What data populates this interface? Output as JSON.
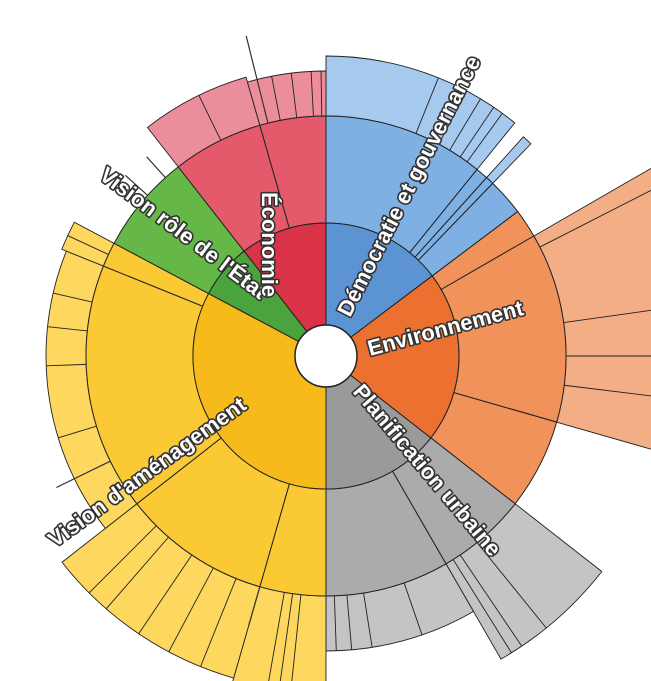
{
  "chart_data": {
    "type": "sunburst",
    "title": "",
    "unit": "degrees",
    "categories": [
      {
        "name": "Démocratie et gouvernance",
        "color": "#5b93d3",
        "color_mid": "#7fb0e4",
        "color_outer": "#a6c9ee",
        "start": 0,
        "end": 53,
        "mid_segments": [
          {
            "start": 0,
            "end": 39,
            "outer": {
              "h": 60,
              "lines": [
                22,
                28,
                31,
                34,
                36
              ]
            }
          },
          {
            "start": 39,
            "end": 42,
            "outer": null
          },
          {
            "start": 42,
            "end": 44,
            "outer": {
              "h": 55,
              "lines": []
            }
          },
          {
            "start": 44,
            "end": 53,
            "outer": null
          }
        ]
      },
      {
        "name": "Environnement",
        "color": "#ec7131",
        "color_mid": "#f0925a",
        "color_outer": "#f3ae85",
        "start": 53,
        "end": 128,
        "mid_segments": [
          {
            "start": 53,
            "end": 60,
            "outer": null
          },
          {
            "start": 60,
            "end": 106,
            "outer": {
              "h": 170,
              "lines": [
                63,
                82,
                90,
                97
              ]
            }
          },
          {
            "start": 106,
            "end": 128,
            "outer": null
          }
        ]
      },
      {
        "name": "Planification urbaine",
        "color": "#9a9a9a",
        "color_mid": "#ababab",
        "color_outer": "#c4c4c4",
        "start": 128,
        "end": 180,
        "mid_segments": [
          {
            "start": 128,
            "end": 150,
            "outer": {
              "h": 110,
              "lines": [
                141,
                146,
                148
              ]
            }
          },
          {
            "start": 150,
            "end": 180,
            "outer": {
              "h": 55,
              "lines": [
                161,
                171,
                175,
                178
              ]
            }
          }
        ]
      },
      {
        "name": "Vision d'aménagement",
        "color": "#f6bb1b",
        "color_mid": "#fbc934",
        "color_outer": "#fdd75e",
        "start": 180,
        "end": 298,
        "mid_segments": [
          {
            "start": 180,
            "end": 196,
            "outer": {
              "h": 110,
              "lines": [
                186,
                188,
                190
              ]
            }
          },
          {
            "start": 196,
            "end": 232,
            "outer": {
              "h": 95,
              "lines": [
                202,
                208,
                214,
                221,
                225
              ]
            }
          },
          {
            "start": 232,
            "end": 292,
            "outer": {
              "h": 40,
              "lines": [
                253,
                268,
                276,
                283
              ]
            }
          },
          {
            "start": 292,
            "end": 298,
            "outer": {
              "h": 45,
              "lines": [
                295
              ]
            }
          }
        ]
      },
      {
        "name": "Vision rôle de l'État",
        "color": "#4aa33c",
        "color_mid": "#65b748",
        "color_outer": "#8ccd72",
        "start": 298,
        "end": 322,
        "mid_segments": [
          {
            "start": 298,
            "end": 322,
            "outer": null
          }
        ]
      },
      {
        "name": "Économie",
        "color": "#da3348",
        "color_mid": "#e45a6a",
        "color_outer": "#ec8d9c",
        "start": 322,
        "end": 360,
        "mid_segments": [
          {
            "start": 322,
            "end": 344,
            "outer": {
              "h": 50,
              "lines": [
                334
              ]
            }
          },
          {
            "start": 344,
            "end": 360,
            "outer": {
              "h": 45,
              "lines": [
                349,
                353,
                357,
                359
              ]
            }
          }
        ]
      }
    ]
  }
}
